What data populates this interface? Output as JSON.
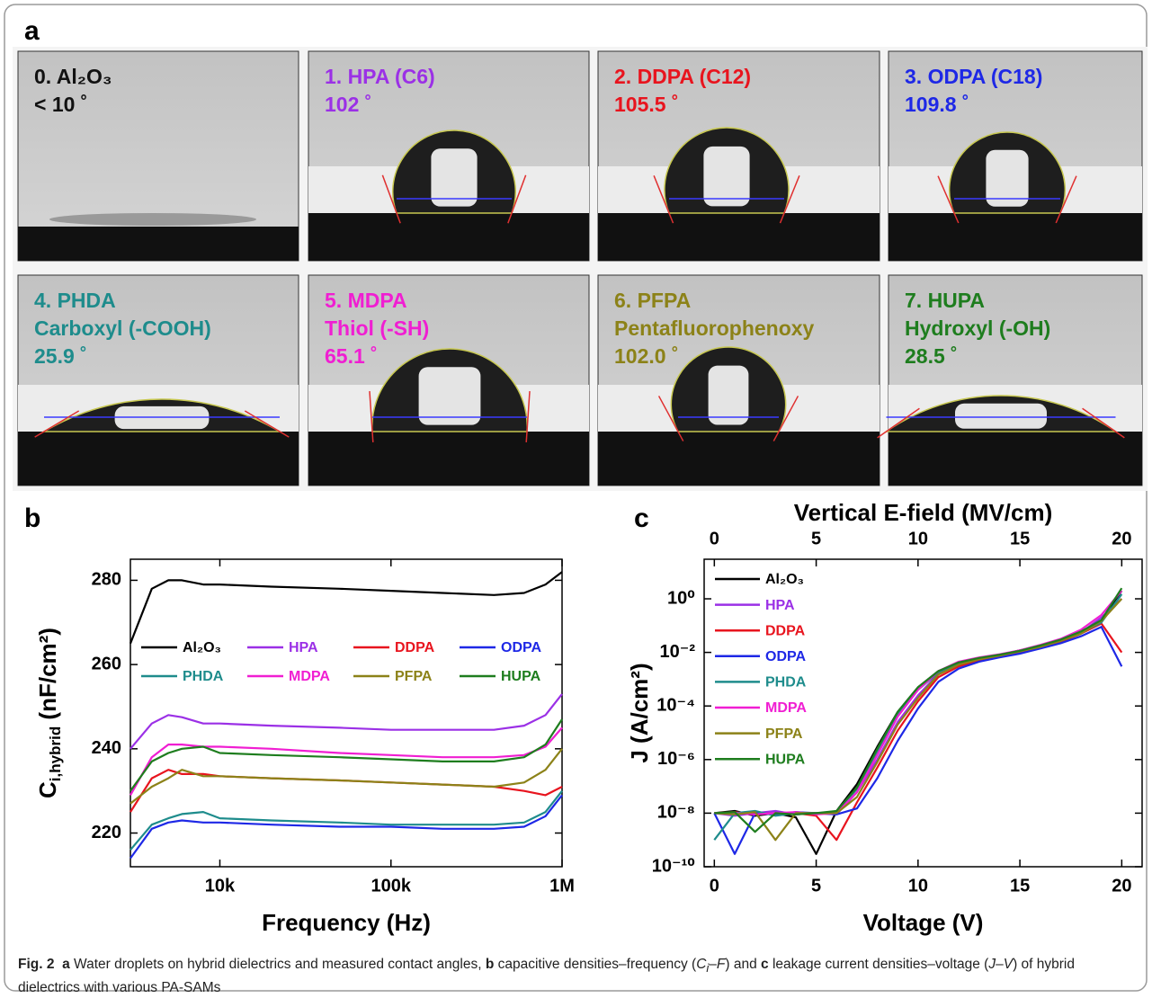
{
  "panel_a": {
    "label": "a",
    "images": [
      {
        "color": "#111111",
        "lines": [
          "0. Al₂O₃",
          "< 10 ˚"
        ]
      },
      {
        "color": "#9b30e6",
        "lines": [
          "1. HPA (C6)",
          "102 ˚"
        ]
      },
      {
        "color": "#e8141e",
        "lines": [
          "2. DDPA (C12)",
          "105.5 ˚"
        ]
      },
      {
        "color": "#1e28e6",
        "lines": [
          "3. ODPA (C18)",
          "109.8 ˚"
        ]
      },
      {
        "color": "#1e8c8c",
        "lines": [
          "4. PHDA",
          "Carboxyl (-COOH)",
          "25.9 ˚"
        ]
      },
      {
        "color": "#f01ed2",
        "lines": [
          "5. MDPA",
          "Thiol (-SH)",
          "65.1 ˚"
        ]
      },
      {
        "color": "#8c8218",
        "lines": [
          "6. PFPA",
          "Pentafluorophenoxy",
          "102.0 ˚"
        ]
      },
      {
        "color": "#1e7d1e",
        "lines": [
          "7. HUPA",
          "Hydroxyl (-OH)",
          "28.5 ˚"
        ]
      }
    ]
  },
  "chart_data": [
    {
      "type": "line",
      "panel_label": "b",
      "xscale": "log",
      "xlabel": "Frequency (Hz)",
      "ylabel": {
        "main": "C",
        "sub": "i,hybrid",
        "unit": " (nF/cm²)"
      },
      "xlim": [
        3000,
        1000000
      ],
      "xticks": [
        {
          "value": 10000,
          "label": "10k"
        },
        {
          "value": 100000,
          "label": "100k"
        },
        {
          "value": 1000000,
          "label": "1M"
        }
      ],
      "ylim": [
        212,
        285
      ],
      "yticks": [
        220,
        240,
        260,
        280
      ],
      "legend_columns": 4,
      "legend": "center-left",
      "x": [
        3000,
        4000,
        5000,
        6000,
        8000,
        10000,
        20000,
        50000,
        100000,
        200000,
        400000,
        600000,
        800000,
        1000000
      ],
      "series": [
        {
          "name": "Al₂O₃",
          "color": "#000000",
          "values": [
            265,
            278,
            280,
            280,
            279,
            279,
            278.5,
            278,
            277.5,
            277,
            276.5,
            277,
            279,
            282
          ]
        },
        {
          "name": "HPA",
          "color": "#9b30e6",
          "values": [
            240,
            246,
            248,
            247.5,
            246,
            246,
            245.5,
            245,
            244.5,
            244.5,
            244.5,
            245.5,
            248,
            253
          ]
        },
        {
          "name": "DDPA",
          "color": "#e8141e",
          "values": [
            225,
            233,
            235,
            234,
            234,
            233.5,
            233,
            232.5,
            232,
            231.5,
            231,
            230,
            229,
            231
          ]
        },
        {
          "name": "ODPA",
          "color": "#1e28e6",
          "values": [
            214,
            221,
            222.5,
            223,
            222.5,
            222.5,
            222,
            221.5,
            221.5,
            221,
            221,
            221.5,
            224,
            229
          ]
        },
        {
          "name": "PHDA",
          "color": "#1e8c8c",
          "values": [
            216,
            222,
            223.5,
            224.5,
            225,
            223.5,
            223,
            222.5,
            222,
            222,
            222,
            222.5,
            225,
            230
          ]
        },
        {
          "name": "MDPA",
          "color": "#f01ed2",
          "values": [
            229,
            238,
            241,
            241,
            240.5,
            240.5,
            240,
            239,
            238.5,
            238,
            238,
            238.5,
            240.5,
            245
          ]
        },
        {
          "name": "PFPA",
          "color": "#8c8218",
          "values": [
            227,
            231,
            233,
            235,
            233.5,
            233.5,
            233,
            232.5,
            232,
            231.5,
            231,
            232,
            235,
            240
          ]
        },
        {
          "name": "HUPA",
          "color": "#1e7d1e",
          "values": [
            230,
            237,
            239,
            240,
            240.5,
            239,
            238.5,
            238,
            237.5,
            237,
            237,
            238,
            241,
            247
          ]
        }
      ]
    },
    {
      "type": "line",
      "panel_label": "c",
      "yscale": "log",
      "xlabel": "Voltage (V)",
      "ylabel": "J (A/cm²)",
      "x2label": "Vertical E-field (MV/cm)",
      "xlim": [
        -0.5,
        21
      ],
      "xticks": [
        0,
        5,
        10,
        15,
        20
      ],
      "x2lim": [
        -0.5,
        21
      ],
      "x2ticks": [
        0,
        5,
        10,
        15,
        20
      ],
      "ylim": [
        1e-10,
        30
      ],
      "yticks": [
        {
          "value": 1e-10,
          "label": "10⁻¹⁰"
        },
        {
          "value": 1e-08,
          "label": "10⁻⁸"
        },
        {
          "value": 1e-06,
          "label": "10⁻⁶"
        },
        {
          "value": 0.0001,
          "label": "10⁻⁴"
        },
        {
          "value": 0.01,
          "label": "10⁻²"
        },
        {
          "value": 1,
          "label": "10⁰"
        }
      ],
      "legend_columns": 1,
      "legend": "upper-left",
      "x": [
        0,
        1,
        2,
        3,
        4,
        5,
        6,
        7,
        8,
        9,
        10,
        11,
        12,
        13,
        14,
        15,
        16,
        17,
        18,
        19,
        20
      ],
      "series": [
        {
          "name": "Al₂O₃",
          "color": "#000000",
          "values": [
            1e-08,
            1.2e-08,
            8e-09,
            1e-08,
            7e-09,
            3e-10,
            1.2e-08,
            1.2e-07,
            3e-06,
            6e-05,
            0.0005,
            0.002,
            0.004,
            0.006,
            0.008,
            0.012,
            0.018,
            0.03,
            0.06,
            0.15,
            2
          ]
        },
        {
          "name": "HPA",
          "color": "#9b30e6",
          "values": [
            1e-08,
            8e-09,
            1e-08,
            1.2e-08,
            9e-09,
            1e-08,
            9e-09,
            6e-08,
            1e-06,
            2.5e-05,
            0.00025,
            0.0016,
            0.0035,
            0.0055,
            0.0075,
            0.011,
            0.017,
            0.028,
            0.055,
            0.2,
            1
          ]
        },
        {
          "name": "DDPA",
          "color": "#e8141e",
          "values": [
            1e-08,
            1.1e-08,
            9e-09,
            1e-08,
            1e-08,
            8e-09,
            1e-09,
            2.5e-08,
            5e-07,
            1.2e-05,
            0.00015,
            0.0012,
            0.003,
            0.005,
            0.007,
            0.01,
            0.015,
            0.025,
            0.05,
            0.12,
            0.01
          ]
        },
        {
          "name": "ODPA",
          "color": "#1e28e6",
          "values": [
            1e-08,
            3e-10,
            1e-08,
            9e-09,
            1.1e-08,
            1e-08,
            9e-09,
            1.5e-08,
            2e-07,
            5e-06,
            8e-05,
            0.0008,
            0.0025,
            0.0045,
            0.0065,
            0.009,
            0.014,
            0.022,
            0.04,
            0.09,
            0.003
          ]
        },
        {
          "name": "PHDA",
          "color": "#1e8c8c",
          "values": [
            1e-09,
            1e-08,
            1.2e-08,
            8e-09,
            1e-08,
            1e-08,
            1.1e-08,
            8e-08,
            2e-06,
            5e-05,
            0.0004,
            0.0018,
            0.004,
            0.006,
            0.008,
            0.011,
            0.017,
            0.028,
            0.055,
            0.13,
            1.5
          ]
        },
        {
          "name": "MDPA",
          "color": "#f01ed2",
          "values": [
            1e-08,
            1e-08,
            9e-09,
            1e-08,
            1.1e-08,
            9e-09,
            1e-08,
            6e-08,
            1.5e-06,
            4e-05,
            0.0004,
            0.002,
            0.0045,
            0.0065,
            0.0085,
            0.012,
            0.019,
            0.032,
            0.07,
            0.25,
            2
          ]
        },
        {
          "name": "PFPA",
          "color": "#8c8218",
          "values": [
            1e-08,
            9e-09,
            1.1e-08,
            1e-09,
            1e-08,
            1e-08,
            1e-08,
            4e-08,
            8e-07,
            2e-05,
            0.0002,
            0.0015,
            0.0035,
            0.0055,
            0.0075,
            0.011,
            0.016,
            0.027,
            0.05,
            0.15,
            1
          ]
        },
        {
          "name": "HUPA",
          "color": "#1e7d1e",
          "values": [
            1e-08,
            1.1e-08,
            2e-09,
            1e-08,
            9e-09,
            1e-08,
            1.2e-08,
            9e-08,
            2.5e-06,
            6e-05,
            0.0005,
            0.002,
            0.0042,
            0.0062,
            0.0082,
            0.0115,
            0.018,
            0.03,
            0.06,
            0.16,
            2.5
          ]
        }
      ]
    }
  ],
  "caption": [
    "Fig. 2",
    "a",
    "Water droplets on hybrid dielectrics and measured contact angles,",
    "b",
    "capacitive densities–frequency (",
    "C",
    "i",
    "–",
    "F",
    ") and",
    "c",
    "leakage current densities–voltage (",
    "J",
    "–",
    "V",
    ") of hybrid dielectrics with various PA-SAMs"
  ]
}
